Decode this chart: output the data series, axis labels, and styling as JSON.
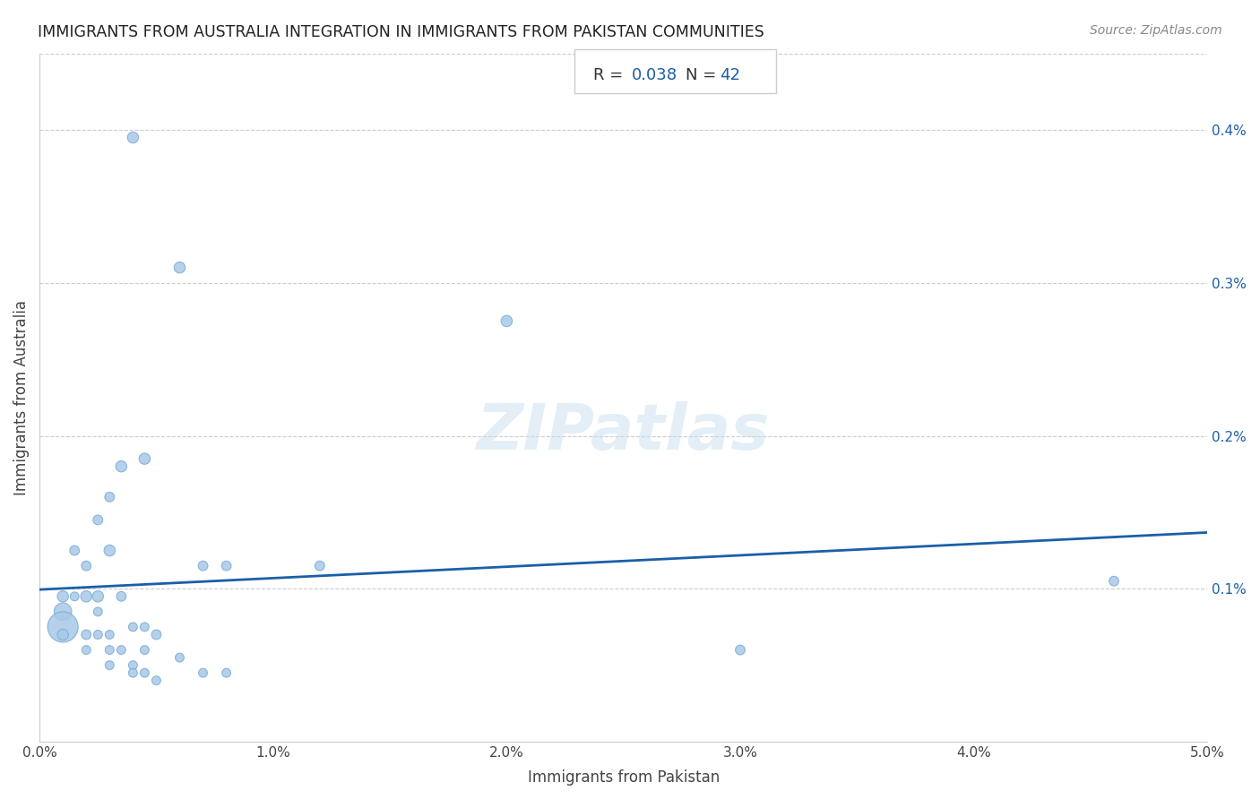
{
  "title": "IMMIGRANTS FROM AUSTRALIA INTEGRATION IN IMMIGRANTS FROM PAKISTAN COMMUNITIES",
  "source": "Source: ZipAtlas.com",
  "xlabel": "Immigrants from Pakistan",
  "ylabel": "Immigrants from Australia",
  "R": 0.038,
  "N": 42,
  "xlim": [
    0.0,
    0.05
  ],
  "ylim": [
    0.0,
    0.0045
  ],
  "xticks": [
    0.0,
    0.01,
    0.02,
    0.03,
    0.04,
    0.05
  ],
  "xtick_labels": [
    "0.0%",
    "1.0%",
    "2.0%",
    "3.0%",
    "4.0%",
    "5.0%"
  ],
  "yticks": [
    0.001,
    0.002,
    0.003,
    0.004
  ],
  "ytick_labels": [
    "0.1%",
    "0.2%",
    "0.3%",
    "0.4%"
  ],
  "scatter_color": "#a8c8e8",
  "scatter_edge_color": "#7aadd4",
  "regression_line_color": "#1a5fa8",
  "grid_color": "#cccccc",
  "title_color": "#222222",
  "source_color": "#888888",
  "annotation_color": "#1a5fa8",
  "watermark_color": "#c8dff0",
  "points": [
    [
      0.001,
      0.00085
    ],
    [
      0.001,
      0.00095
    ],
    [
      0.0015,
      0.00125
    ],
    [
      0.0015,
      0.00095
    ],
    [
      0.001,
      0.00075
    ],
    [
      0.001,
      0.0007
    ],
    [
      0.002,
      0.00115
    ],
    [
      0.002,
      0.00095
    ],
    [
      0.002,
      0.0007
    ],
    [
      0.002,
      0.0006
    ],
    [
      0.0025,
      0.00145
    ],
    [
      0.0025,
      0.00095
    ],
    [
      0.0025,
      0.00085
    ],
    [
      0.0025,
      0.0007
    ],
    [
      0.003,
      0.0016
    ],
    [
      0.003,
      0.00125
    ],
    [
      0.003,
      0.0007
    ],
    [
      0.003,
      0.0006
    ],
    [
      0.003,
      0.0005
    ],
    [
      0.0035,
      0.0018
    ],
    [
      0.0035,
      0.00095
    ],
    [
      0.0035,
      0.0006
    ],
    [
      0.004,
      0.00395
    ],
    [
      0.004,
      0.00075
    ],
    [
      0.004,
      0.0005
    ],
    [
      0.004,
      0.00045
    ],
    [
      0.0045,
      0.00185
    ],
    [
      0.0045,
      0.00075
    ],
    [
      0.0045,
      0.0006
    ],
    [
      0.0045,
      0.00045
    ],
    [
      0.005,
      0.0007
    ],
    [
      0.005,
      0.0004
    ],
    [
      0.006,
      0.0031
    ],
    [
      0.006,
      0.00055
    ],
    [
      0.007,
      0.00115
    ],
    [
      0.007,
      0.00045
    ],
    [
      0.008,
      0.00115
    ],
    [
      0.008,
      0.00045
    ],
    [
      0.012,
      0.00115
    ],
    [
      0.02,
      0.00275
    ],
    [
      0.03,
      0.0006
    ],
    [
      0.046,
      0.00105
    ]
  ],
  "sizes": [
    200,
    80,
    60,
    50,
    600,
    80,
    60,
    80,
    60,
    50,
    60,
    80,
    50,
    50,
    60,
    80,
    50,
    50,
    50,
    80,
    60,
    50,
    80,
    50,
    50,
    50,
    80,
    50,
    50,
    50,
    60,
    50,
    80,
    50,
    60,
    50,
    60,
    50,
    60,
    80,
    60,
    60
  ]
}
